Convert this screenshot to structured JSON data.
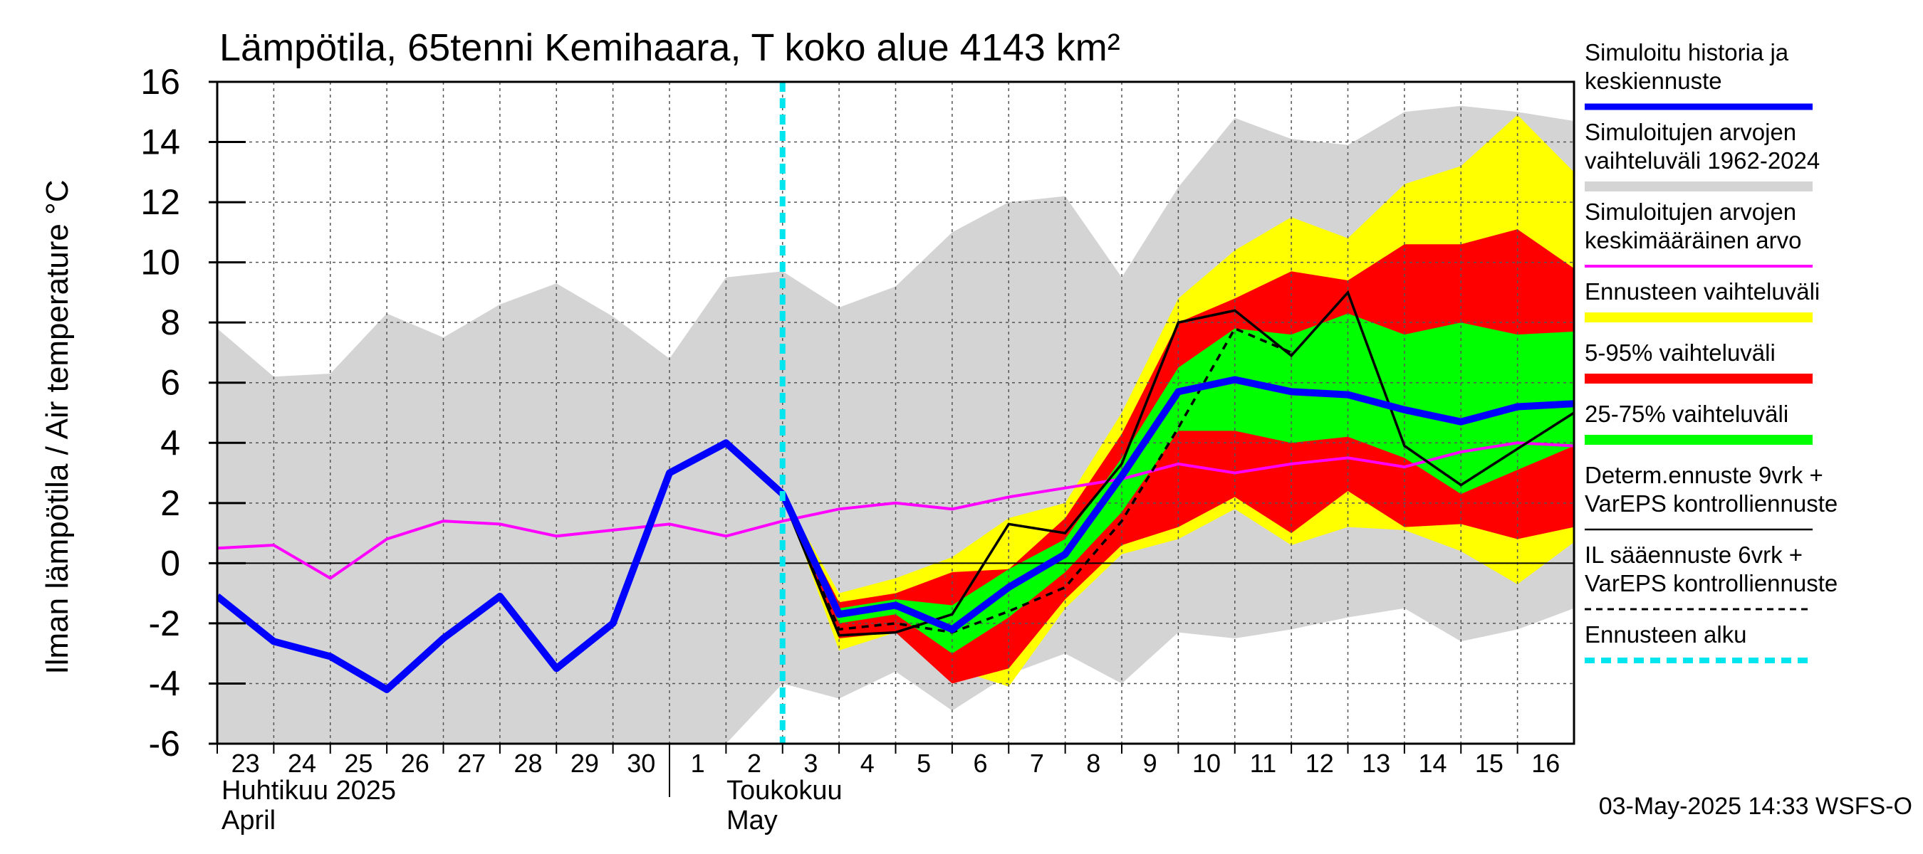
{
  "chart_data": {
    "type": "line",
    "title": "Lämpötila, 65tenni Kemihaara, T koko alue 4143 km²",
    "ylabel": "Ilman lämpötila / Air temperature   °C",
    "ylim": [
      -6,
      16
    ],
    "yticks": [
      -6,
      -4,
      -2,
      0,
      2,
      4,
      6,
      8,
      10,
      12,
      14,
      16
    ],
    "xlim": [
      -0.5,
      23.5
    ],
    "x_tick_labels": [
      "23",
      "24",
      "25",
      "26",
      "27",
      "28",
      "29",
      "30",
      "1",
      "2",
      "3",
      "4",
      "5",
      "6",
      "7",
      "8",
      "9",
      "10",
      "11",
      "12",
      "13",
      "14",
      "15",
      "16"
    ],
    "month_labels": [
      {
        "finnish": "Huhtikuu  2025",
        "english": "April",
        "start_index": 0
      },
      {
        "finnish": "Toukokuu",
        "english": "May",
        "start_index": 8
      }
    ],
    "forecast_start_x": 9.5,
    "series": [
      {
        "name": "Simuloitujen arvojen vaihteluväli 1962-2024",
        "kind": "band",
        "color": "#d4d4d4",
        "x": [
          -0.5,
          0.5,
          1.5,
          2.5,
          3.5,
          4.5,
          5.5,
          6.5,
          7.5,
          8.5,
          9.5,
          10.5,
          11.5,
          12.5,
          13.5,
          14.5,
          15.5,
          16.5,
          17.5,
          18.5,
          19.5,
          20.5,
          21.5,
          22.5,
          23.5
        ],
        "low": [
          -6,
          -6,
          -6,
          -6,
          -6,
          -6,
          -6,
          -6,
          -6,
          -6,
          -4,
          -4.5,
          -3.6,
          -4.9,
          -3.7,
          -3,
          -4,
          -2.3,
          -2.5,
          -2.2,
          -1.8,
          -1.5,
          -2.6,
          -2.2,
          -1.5
        ],
        "high": [
          7.8,
          6.2,
          6.3,
          8.3,
          7.5,
          8.6,
          9.3,
          8.2,
          6.8,
          9.5,
          9.7,
          8.5,
          9.2,
          11,
          12,
          12.2,
          9.5,
          12.5,
          14.8,
          14.1,
          13.9,
          15,
          15.2,
          15,
          14.7
        ]
      },
      {
        "name": "Ennusteen vaihteluväli",
        "kind": "band",
        "color": "#ffff00",
        "x": [
          9.5,
          10.5,
          11.5,
          12.5,
          13.5,
          14.5,
          15.5,
          16.5,
          17.5,
          18.5,
          19.5,
          20.5,
          21.5,
          22.5,
          23.5
        ],
        "low": [
          2.3,
          -2.9,
          -2.3,
          -3.5,
          -4.1,
          -1.5,
          0.3,
          0.8,
          1.8,
          0.6,
          1.2,
          1.1,
          0.4,
          -0.7,
          0.7
        ],
        "high": [
          2.3,
          -1,
          -0.5,
          0.2,
          1.5,
          2,
          5,
          8.8,
          10.4,
          11.5,
          10.8,
          12.6,
          13.2,
          14.9,
          13
        ]
      },
      {
        "name": "5-95% vaihteluväli",
        "kind": "band",
        "color": "#ff0000",
        "x": [
          9.5,
          10.5,
          11.5,
          12.5,
          13.5,
          14.5,
          15.5,
          16.5,
          17.5,
          18.5,
          19.5,
          20.5,
          21.5,
          22.5,
          23.5
        ],
        "low": [
          2.3,
          -2.5,
          -2.3,
          -4,
          -3.5,
          -1.2,
          0.6,
          1.2,
          2.2,
          1,
          2.4,
          1.2,
          1.3,
          0.8,
          1.2
        ],
        "high": [
          2.3,
          -1.3,
          -1,
          -0.3,
          -0.2,
          1.5,
          4.3,
          8,
          8.8,
          9.7,
          9.4,
          10.6,
          10.6,
          11.1,
          9.8
        ]
      },
      {
        "name": "25-75% vaihteluväli",
        "kind": "band",
        "color": "#00ff00",
        "x": [
          9.5,
          10.5,
          11.5,
          12.5,
          13.5,
          14.5,
          15.5,
          16.5,
          17.5,
          18.5,
          19.5,
          20.5,
          21.5,
          22.5,
          23.5
        ],
        "low": [
          2.3,
          -2,
          -1.7,
          -3,
          -1.8,
          -0.3,
          1.7,
          4.4,
          4.4,
          4,
          4.2,
          3.5,
          2.3,
          3.1,
          3.9
        ],
        "high": [
          2.3,
          -1.5,
          -1.2,
          -1.4,
          -0.2,
          0.8,
          3.5,
          6.5,
          7.8,
          7.6,
          8.3,
          7.6,
          8,
          7.6,
          7.7
        ]
      },
      {
        "name": "Simuloitujen arvojen keskimääräinen arvo",
        "kind": "line",
        "color": "#ff00ff",
        "x": [
          -0.5,
          0.5,
          1.5,
          2.5,
          3.5,
          4.5,
          5.5,
          6.5,
          7.5,
          8.5,
          9.5,
          10.5,
          11.5,
          12.5,
          13.5,
          14.5,
          15.5,
          16.5,
          17.5,
          18.5,
          19.5,
          20.5,
          21.5,
          22.5,
          23.5
        ],
        "y": [
          0.5,
          0.6,
          -0.5,
          0.8,
          1.4,
          1.3,
          0.9,
          1.1,
          1.3,
          0.9,
          1.4,
          1.8,
          2.0,
          1.8,
          2.2,
          2.5,
          2.8,
          3.3,
          3.0,
          3.3,
          3.5,
          3.2,
          3.7,
          4.0,
          3.9
        ]
      },
      {
        "name": "Determ.ennuste 9vrk + VarEPS kontrolliennuste",
        "kind": "line",
        "color": "#000000",
        "x": [
          9.5,
          10.5,
          11.5,
          12.5,
          13.5,
          14.5,
          15.5,
          16.5,
          17.5,
          18.5,
          19.5,
          20.5,
          21.5,
          22.5,
          23.5
        ],
        "y": [
          2.2,
          -2.4,
          -2.3,
          -1.7,
          1.3,
          1.0,
          3.3,
          8.0,
          8.4,
          6.9,
          9.0,
          3.9,
          2.6,
          3.8,
          5.0
        ]
      },
      {
        "name": "IL sääennuste 6vrk  + VarEPS kontrolliennuste",
        "kind": "dashed",
        "color": "#000000",
        "x": [
          9.5,
          10.5,
          11.5,
          12.5,
          13.5,
          14.5,
          15.5,
          16.5,
          17.5,
          18.5,
          19.5,
          20.5,
          21.5,
          22.5,
          23.5
        ],
        "y": [
          2.2,
          -2.2,
          -2.0,
          -2.3,
          -1.6,
          -0.8,
          1.4,
          4.5,
          7.8,
          7.0,
          null,
          null,
          null,
          null,
          4.5
        ]
      },
      {
        "name": "Simuloitu historia ja keskiennuste",
        "kind": "line",
        "color": "#0000ff",
        "x": [
          -0.5,
          0.5,
          1.5,
          2.5,
          3.5,
          4.5,
          5.5,
          6.5,
          7.5,
          8.5,
          9.5,
          10.5,
          11.5,
          12.5,
          13.5,
          14.5,
          15.5,
          16.5,
          17.5,
          18.5,
          19.5,
          20.5,
          21.5,
          22.5,
          23.5
        ],
        "y": [
          -1.1,
          -2.6,
          -3.1,
          -4.2,
          -2.5,
          -1.1,
          -3.5,
          -2.0,
          3.0,
          4.0,
          2.3,
          -1.7,
          -1.4,
          -2.2,
          -0.8,
          0.3,
          2.9,
          5.7,
          6.1,
          5.7,
          5.6,
          5.1,
          4.7,
          5.2,
          5.3
        ]
      }
    ],
    "legend": {
      "placement": "right",
      "entries": [
        {
          "lines": [
            "Simuloitu historia ja",
            "keskiennuste"
          ],
          "color": "#0000ff",
          "style": "thick"
        },
        {
          "lines": [
            "Simuloitujen arvojen",
            "vaihteluväli 1962-2024"
          ],
          "color": "#d4d4d4",
          "style": "band"
        },
        {
          "lines": [
            "Simuloitujen arvojen",
            "keskimääräinen arvo"
          ],
          "color": "#ff00ff",
          "style": "thin"
        },
        {
          "lines": [
            "Ennusteen vaihteluväli"
          ],
          "color": "#ffff00",
          "style": "band"
        },
        {
          "lines": [
            "5-95% vaihteluväli"
          ],
          "color": "#ff0000",
          "style": "band"
        },
        {
          "lines": [
            "25-75% vaihteluväli"
          ],
          "color": "#00ff00",
          "style": "band"
        },
        {
          "lines": [
            "Determ.ennuste 9vrk +",
            "VarEPS kontrolliennuste"
          ],
          "color": "#000000",
          "style": "line"
        },
        {
          "lines": [
            "IL sääennuste 6vrk  +",
            "  VarEPS kontrolliennuste"
          ],
          "color": "#000000",
          "style": "dashed"
        },
        {
          "lines": [
            "Ennusteen alku"
          ],
          "color": "#00e5ee",
          "style": "cyan-dashed"
        }
      ]
    },
    "footer": "03-May-2025 14:33 WSFS-O",
    "grid": true
  }
}
